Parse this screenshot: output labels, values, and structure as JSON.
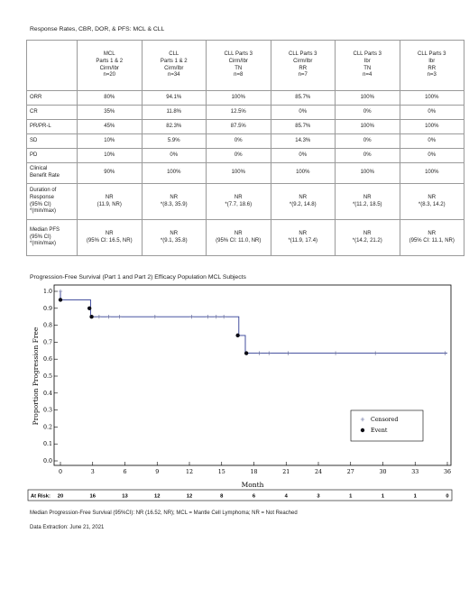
{
  "table_title": "Response Rates, CBR, DOR, & PFS: MCL & CLL",
  "columns": [
    [
      "MCL",
      "Parts 1 & 2",
      "Cirm/Ibr",
      "n=20"
    ],
    [
      "CLL",
      "Parts 1 & 2",
      "Cirm/Ibr",
      "n=34"
    ],
    [
      "CLL Parts 3",
      "Cirm/Ibr",
      "TN",
      "n=8"
    ],
    [
      "CLL Parts 3",
      "Cirm/Ibr",
      "RR",
      "n=7"
    ],
    [
      "CLL Parts 3",
      "Ibr",
      "TN",
      "n=4"
    ],
    [
      "CLL Parts 3",
      "Ibr",
      "RR",
      "n=3"
    ]
  ],
  "rows": [
    {
      "label": [
        "ORR"
      ],
      "values": [
        [
          "80%"
        ],
        [
          "94.1%"
        ],
        [
          "100%"
        ],
        [
          "85.7%"
        ],
        [
          "100%"
        ],
        [
          "100%"
        ]
      ]
    },
    {
      "label": [
        "CR"
      ],
      "values": [
        [
          "35%"
        ],
        [
          "11.8%"
        ],
        [
          "12.5%"
        ],
        [
          "0%"
        ],
        [
          "0%"
        ],
        [
          "0%"
        ]
      ]
    },
    {
      "label": [
        "PR/PR-L"
      ],
      "values": [
        [
          "45%"
        ],
        [
          "82.3%"
        ],
        [
          "87.5%"
        ],
        [
          "85.7%"
        ],
        [
          "100%"
        ],
        [
          "100%"
        ]
      ]
    },
    {
      "label": [
        "SD"
      ],
      "values": [
        [
          "10%"
        ],
        [
          "5.9%"
        ],
        [
          "0%"
        ],
        [
          "14.3%"
        ],
        [
          "0%"
        ],
        [
          "0%"
        ]
      ]
    },
    {
      "label": [
        "PD"
      ],
      "values": [
        [
          "10%"
        ],
        [
          "0%"
        ],
        [
          "0%"
        ],
        [
          "0%"
        ],
        [
          "0%"
        ],
        [
          "0%"
        ]
      ]
    },
    {
      "label": [
        "Clinical",
        "Benefit Rate"
      ],
      "values": [
        [
          "90%"
        ],
        [
          "100%"
        ],
        [
          "100%"
        ],
        [
          "100%"
        ],
        [
          "100%"
        ],
        [
          "100%"
        ]
      ]
    },
    {
      "label": [
        "Duration of",
        "Response",
        "(95% CI)",
        "*(min/max)"
      ],
      "values": [
        [
          "NR",
          "(11.9, NR)"
        ],
        [
          "NR",
          "*(8.3, 35.9)"
        ],
        [
          "NR",
          "*(7.7, 18.6)"
        ],
        [
          "NR",
          "*(9.2, 14.8)"
        ],
        [
          "NR",
          "*(11.2, 18.5)"
        ],
        [
          "NR",
          "*(8.3, 14.2)"
        ]
      ]
    },
    {
      "label": [
        "Median PFS",
        "(95% CI)",
        "*(min/max)"
      ],
      "values": [
        [
          "NR",
          "(95% CI: 16.5, NR)"
        ],
        [
          "NR",
          "*(9.1, 35.8)"
        ],
        [
          "NR",
          "(95% CI: 11.0, NR)"
        ],
        [
          "NR",
          "*(11.9, 17.4)"
        ],
        [
          "NR",
          "*(14.2, 21.2)"
        ],
        [
          "NR",
          "(95% CI: 11.1, NR)"
        ]
      ]
    }
  ],
  "chart_title": "Progression-Free Survival (Part 1 and Part 2) Efficacy Population MCL Subjects",
  "chart_data": {
    "type": "line",
    "title": "",
    "xlabel": "Month",
    "ylabel": "Proportion Progression Free",
    "xlim": [
      0,
      36
    ],
    "ylim": [
      0,
      1
    ],
    "xticks": [
      "0",
      "3",
      "6",
      "9",
      "12",
      "15",
      "18",
      "21",
      "24",
      "27",
      "30",
      "33",
      "36"
    ],
    "yticks": [
      "0.0",
      "0.1",
      "0.2",
      "0.3",
      "0.4",
      "0.5",
      "0.6",
      "0.7",
      "0.8",
      "0.9",
      "1.0"
    ],
    "step_curve": [
      [
        0,
        1.0
      ],
      [
        0,
        0.95
      ],
      [
        2.8,
        0.95
      ],
      [
        2.8,
        0.85
      ],
      [
        16.6,
        0.85
      ],
      [
        16.6,
        0.74
      ],
      [
        17.2,
        0.74
      ],
      [
        17.2,
        0.635
      ],
      [
        36,
        0.635
      ]
    ],
    "events": [
      [
        0,
        0.95
      ],
      [
        2.7,
        0.9
      ],
      [
        2.9,
        0.85
      ],
      [
        16.5,
        0.74
      ],
      [
        17.3,
        0.635
      ]
    ],
    "censored": [
      [
        0,
        1.0
      ],
      [
        3.6,
        0.85
      ],
      [
        4.5,
        0.85
      ],
      [
        5.5,
        0.85
      ],
      [
        8.8,
        0.85
      ],
      [
        12.2,
        0.85
      ],
      [
        13.7,
        0.85
      ],
      [
        14.5,
        0.85
      ],
      [
        15.2,
        0.85
      ],
      [
        18.5,
        0.635
      ],
      [
        19.4,
        0.635
      ],
      [
        21.2,
        0.635
      ],
      [
        25.6,
        0.635
      ],
      [
        29.3,
        0.635
      ],
      [
        35.8,
        0.635
      ]
    ],
    "legend": {
      "placement": "lower-right",
      "entries": [
        "Censored",
        "Event"
      ]
    },
    "at_risk_label": "At Risk:",
    "at_risk": [
      "20",
      "16",
      "13",
      "12",
      "12",
      "8",
      "6",
      "4",
      "3",
      "1",
      "1",
      "1",
      "0"
    ]
  },
  "footnote_pfs": "Median Progression-Free Survival (95%CI): NR (16.52, NR); MCL = Mantle Cell Lymphoma; NR = Not Reached",
  "footnote_date": "Data Extraction: June 21, 2021"
}
